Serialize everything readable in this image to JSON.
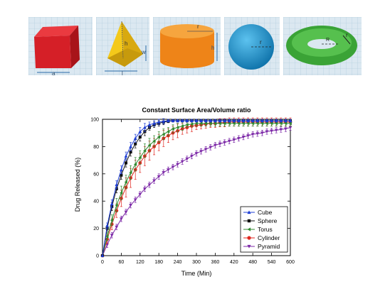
{
  "shapes": [
    {
      "name": "cube",
      "dims": [
        "a"
      ],
      "color": "#d9232a"
    },
    {
      "name": "pyramid",
      "dims": [
        "h",
        "w",
        "l"
      ],
      "color": "#f5d220"
    },
    {
      "name": "cylinder",
      "dims": [
        "r",
        "h"
      ],
      "color": "#f08a1c"
    },
    {
      "name": "sphere",
      "dims": [
        "r"
      ],
      "color": "#1e9bd7"
    },
    {
      "name": "torus",
      "dims": [
        "r",
        "R"
      ],
      "color": "#3ea837"
    }
  ],
  "chart_data": {
    "type": "line",
    "title": "Constant Surface Area/Volume ratio",
    "xlabel": "Time (Min)",
    "ylabel": "Drug Released (%)",
    "xlim": [
      0,
      600
    ],
    "ylim": [
      0,
      100
    ],
    "xticks": [
      0,
      60,
      120,
      180,
      240,
      300,
      360,
      420,
      480,
      540,
      600
    ],
    "yticks": [
      0,
      20,
      40,
      60,
      80,
      100
    ],
    "legend_position": "bottom-right",
    "grid": false,
    "series": [
      {
        "name": "Cube",
        "color": "#1f3fd6",
        "marker": "triangle-up",
        "x": [
          0,
          15,
          30,
          45,
          60,
          75,
          90,
          105,
          120,
          135,
          150,
          165,
          180,
          195,
          210,
          225,
          240,
          255,
          270,
          285,
          300,
          315,
          330,
          345,
          360,
          375,
          390,
          405,
          420,
          435,
          450,
          465,
          480,
          495,
          510,
          525,
          540,
          555,
          570,
          585,
          600
        ],
        "y": [
          0,
          22,
          38,
          52,
          63,
          73,
          80,
          86,
          91,
          94,
          96,
          97,
          98,
          98.5,
          99,
          99,
          99,
          99,
          99,
          99,
          99,
          99,
          99,
          99,
          99,
          99,
          99,
          99,
          99,
          99,
          99,
          99,
          99,
          99,
          99,
          99,
          99,
          99,
          99,
          99,
          99
        ],
        "error": [
          0,
          2,
          3,
          3,
          3,
          3,
          3,
          3,
          3,
          3,
          2,
          2,
          2,
          2,
          1,
          1,
          1,
          1,
          1,
          1,
          1,
          1,
          1,
          1,
          1,
          1,
          1,
          1,
          1,
          1,
          1,
          1,
          1,
          1,
          1,
          1,
          1,
          1,
          1,
          1,
          1
        ]
      },
      {
        "name": "Sphere",
        "color": "#111111",
        "marker": "square",
        "x": [
          0,
          15,
          30,
          45,
          60,
          75,
          90,
          105,
          120,
          135,
          150,
          165,
          180,
          195,
          210,
          225,
          240,
          255,
          270,
          285,
          300,
          315,
          330,
          345,
          360,
          375,
          390,
          405,
          420,
          435,
          450,
          465,
          480,
          495,
          510,
          525,
          540,
          555,
          570,
          585,
          600
        ],
        "y": [
          0,
          20,
          36,
          49,
          59,
          68,
          76,
          82,
          87,
          91,
          94,
          96,
          97,
          98,
          98.5,
          99,
          99,
          99,
          99,
          99,
          99,
          99,
          99,
          99,
          99,
          99,
          99,
          99,
          99,
          99,
          99,
          99,
          99,
          99,
          99,
          99,
          99,
          99,
          99,
          99,
          99
        ],
        "error": [
          0,
          2,
          3,
          3,
          3,
          3,
          3,
          3,
          3,
          3,
          2,
          2,
          2,
          2,
          1,
          1,
          1,
          1,
          1,
          1,
          1,
          1,
          1,
          1,
          1,
          1,
          1,
          1,
          1,
          1,
          1,
          1,
          1,
          1,
          1,
          1,
          1,
          1,
          1,
          1,
          1
        ]
      },
      {
        "name": "Torus",
        "color": "#2f8a2f",
        "marker": "triangle-left",
        "x": [
          0,
          15,
          30,
          45,
          60,
          75,
          90,
          105,
          120,
          135,
          150,
          165,
          180,
          195,
          210,
          225,
          240,
          255,
          270,
          285,
          300,
          315,
          330,
          345,
          360,
          375,
          390,
          405,
          420,
          435,
          450,
          465,
          480,
          495,
          510,
          525,
          540,
          555,
          570,
          585,
          600
        ],
        "y": [
          0,
          14,
          26,
          37,
          46,
          54,
          61,
          67,
          72,
          77,
          81,
          84,
          87,
          89,
          91,
          93,
          94,
          95,
          96,
          96.5,
          97,
          97,
          97,
          97,
          97,
          97,
          97,
          97,
          97,
          97,
          97,
          97,
          97,
          97,
          97,
          97,
          97,
          97,
          97,
          97,
          97
        ],
        "error": [
          0,
          3,
          4,
          5,
          5,
          5,
          5,
          5,
          5,
          5,
          5,
          4,
          4,
          4,
          3,
          3,
          3,
          3,
          2,
          2,
          2,
          2,
          2,
          2,
          2,
          2,
          2,
          2,
          2,
          2,
          2,
          2,
          2,
          2,
          2,
          2,
          2,
          2,
          2,
          2,
          2
        ]
      },
      {
        "name": "Cylinder",
        "color": "#e0261f",
        "marker": "circle",
        "x": [
          0,
          15,
          30,
          45,
          60,
          75,
          90,
          105,
          120,
          135,
          150,
          165,
          180,
          195,
          210,
          225,
          240,
          255,
          270,
          285,
          300,
          315,
          330,
          345,
          360,
          375,
          390,
          405,
          420,
          435,
          450,
          465,
          480,
          495,
          510,
          525,
          540,
          555,
          570,
          585,
          600
        ],
        "y": [
          0,
          12,
          23,
          33,
          42,
          50,
          57,
          63,
          68,
          73,
          77,
          80,
          83,
          86,
          88,
          90,
          91.5,
          93,
          94,
          95,
          95.5,
          96,
          96.5,
          97,
          97,
          97.5,
          97.5,
          98,
          98,
          98,
          98,
          98,
          98,
          98,
          98,
          98,
          98,
          98,
          98,
          98,
          98
        ],
        "error": [
          0,
          3,
          4,
          5,
          6,
          7,
          7,
          7,
          7,
          7,
          7,
          6,
          6,
          6,
          5,
          5,
          5,
          4,
          4,
          4,
          3,
          3,
          3,
          3,
          3,
          3,
          3,
          3,
          3,
          3,
          3,
          3,
          3,
          3,
          3,
          3,
          3,
          3,
          3,
          3,
          3
        ]
      },
      {
        "name": "Pyramid",
        "color": "#7d2aa8",
        "marker": "triangle-down",
        "x": [
          0,
          15,
          30,
          45,
          60,
          75,
          90,
          105,
          120,
          135,
          150,
          165,
          180,
          195,
          210,
          225,
          240,
          255,
          270,
          285,
          300,
          315,
          330,
          345,
          360,
          375,
          390,
          405,
          420,
          435,
          450,
          465,
          480,
          495,
          510,
          525,
          540,
          555,
          570,
          585,
          600
        ],
        "y": [
          0,
          8,
          15,
          21,
          27,
          32,
          37,
          41,
          45,
          49,
          52,
          55,
          58,
          61,
          63,
          65,
          67,
          69,
          71,
          73,
          75,
          76.5,
          78,
          79.5,
          81,
          82,
          83,
          84,
          85,
          86,
          87,
          88,
          89,
          89.5,
          90,
          91,
          91.5,
          92,
          92.5,
          93,
          94
        ],
        "error": [
          0,
          2,
          2,
          2,
          2,
          2,
          2,
          2,
          2,
          2,
          2,
          2,
          2,
          2,
          2,
          2,
          2,
          2,
          2,
          2,
          2,
          2,
          2,
          2,
          2,
          2,
          2,
          2,
          2,
          2,
          2,
          2,
          2,
          2,
          2,
          2,
          2,
          2,
          2,
          2,
          2
        ]
      }
    ]
  }
}
